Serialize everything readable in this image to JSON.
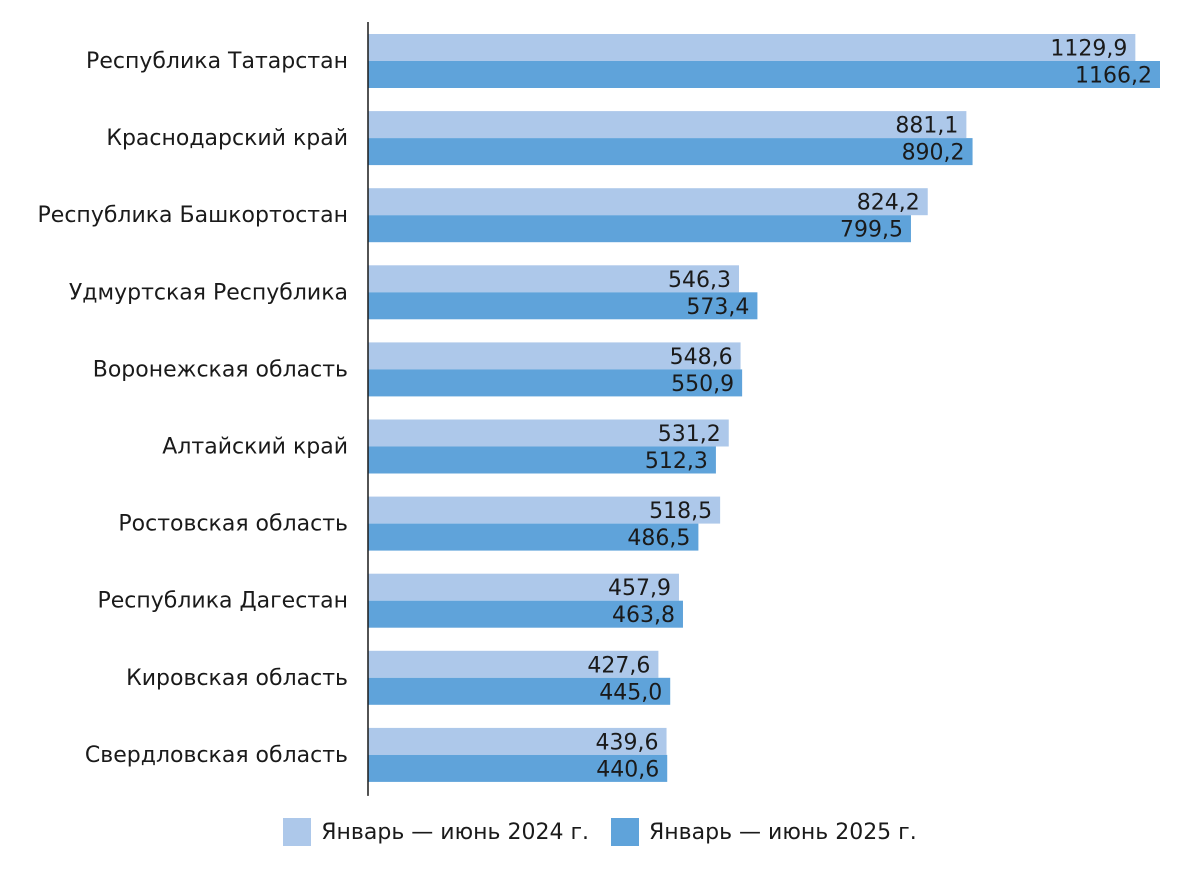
{
  "chart_data": {
    "type": "bar",
    "orientation": "horizontal",
    "categories": [
      "Республика Татарстан",
      "Краснодарский край",
      "Республика Башкортостан",
      "Удмуртская Республика",
      "Воронежская область",
      "Алтайский край",
      "Ростовская область",
      "Республика Дагестан",
      "Кировская область",
      "Свердловская область"
    ],
    "series": [
      {
        "name": "Январь — июнь 2024 г.",
        "color": "#adc8ea",
        "values": [
          1129.9,
          881.1,
          824.2,
          546.3,
          548.6,
          531.2,
          518.5,
          457.9,
          427.6,
          439.6
        ],
        "labels": [
          "1129,9",
          "881,1",
          "824,2",
          "546,3",
          "548,6",
          "531,2",
          "518,5",
          "457,9",
          "427,6",
          "439,6"
        ]
      },
      {
        "name": "Январь — июнь 2025 г.",
        "color": "#5fa3da",
        "values": [
          1166.2,
          890.2,
          799.5,
          573.4,
          550.9,
          512.3,
          486.5,
          463.8,
          445.0,
          440.6
        ],
        "labels": [
          "1166,2",
          "890,2",
          "799,5",
          "573,4",
          "550,9",
          "512,3",
          "486,5",
          "463,8",
          "445,0",
          "440,6"
        ]
      }
    ],
    "xlim": [
      0,
      1166.2
    ],
    "grid": false,
    "legend": "bottom"
  }
}
